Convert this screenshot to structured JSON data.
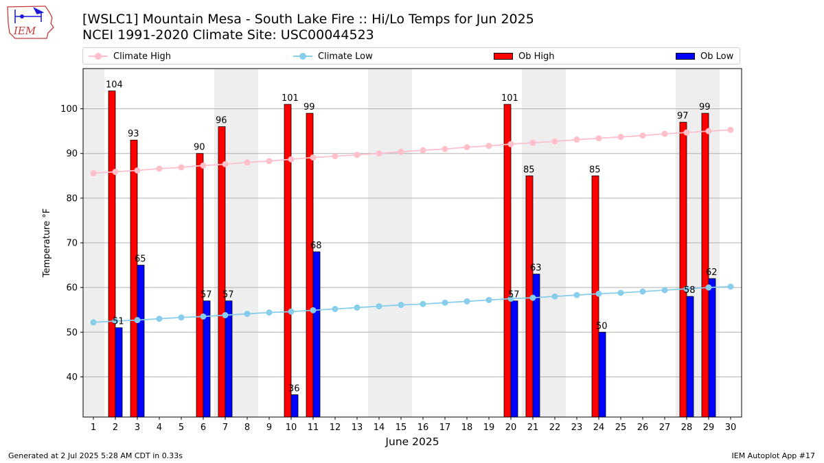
{
  "logo": {
    "text": "IEM",
    "icon": "iowa-state-weather-logo"
  },
  "title": {
    "line1": "[WSLC1] Mountain Mesa - South Lake Fire :: Hi/Lo Temps for Jun 2025",
    "line2": "NCEI 1991-2020 Climate Site: USC00044523"
  },
  "legend": {
    "climate_high": "Climate High",
    "climate_low": "Climate Low",
    "ob_high": "Ob High",
    "ob_low": "Ob Low"
  },
  "colors": {
    "climate_high": "#ffc0cb",
    "climate_low": "#87ceeb",
    "ob_high": "#ff0000",
    "ob_low": "#0000ff",
    "weekend_shade": "#eeeeee"
  },
  "footer": {
    "generated": "Generated at 2 Jul 2025 5:28 AM CDT in 0.33s",
    "app": "IEM Autoplot App #17"
  },
  "chart_data": {
    "type": "bar",
    "xlabel": "June 2025",
    "ylabel": "Temperature °F",
    "x": [
      1,
      2,
      3,
      4,
      5,
      6,
      7,
      8,
      9,
      10,
      11,
      12,
      13,
      14,
      15,
      16,
      17,
      18,
      19,
      20,
      21,
      22,
      23,
      24,
      25,
      26,
      27,
      28,
      29,
      30
    ],
    "ylim": [
      31,
      109
    ],
    "yticks": [
      40,
      50,
      60,
      70,
      80,
      90,
      100
    ],
    "grid": true,
    "legend_position": "top",
    "shaded_days": [
      1,
      7,
      8,
      14,
      15,
      21,
      22,
      28,
      29
    ],
    "series": [
      {
        "name": "Climate High",
        "kind": "line",
        "values": [
          85.6,
          85.9,
          86.2,
          86.6,
          86.9,
          87.3,
          87.6,
          88.0,
          88.3,
          88.7,
          89.1,
          89.4,
          89.7,
          90.0,
          90.4,
          90.7,
          91.0,
          91.4,
          91.7,
          92.1,
          92.4,
          92.7,
          93.1,
          93.4,
          93.7,
          94.0,
          94.4,
          94.7,
          95.0,
          95.3
        ]
      },
      {
        "name": "Climate Low",
        "kind": "line",
        "values": [
          52.2,
          52.5,
          52.7,
          53.0,
          53.3,
          53.5,
          53.8,
          54.1,
          54.4,
          54.6,
          54.9,
          55.2,
          55.5,
          55.8,
          56.1,
          56.3,
          56.6,
          56.9,
          57.2,
          57.5,
          57.7,
          58.0,
          58.3,
          58.6,
          58.8,
          59.1,
          59.4,
          59.7,
          60.0,
          60.2
        ]
      },
      {
        "name": "Ob High",
        "kind": "bar",
        "values": [
          null,
          104,
          93,
          null,
          null,
          90,
          96,
          null,
          null,
          101,
          99,
          null,
          null,
          null,
          null,
          null,
          null,
          null,
          null,
          101,
          85,
          null,
          null,
          85,
          null,
          null,
          null,
          97,
          99,
          null
        ]
      },
      {
        "name": "Ob Low",
        "kind": "bar",
        "values": [
          null,
          51,
          65,
          null,
          null,
          57,
          57,
          null,
          null,
          36,
          68,
          null,
          null,
          null,
          null,
          null,
          null,
          null,
          null,
          57,
          63,
          null,
          null,
          50,
          null,
          null,
          null,
          58,
          62,
          null
        ]
      }
    ]
  }
}
